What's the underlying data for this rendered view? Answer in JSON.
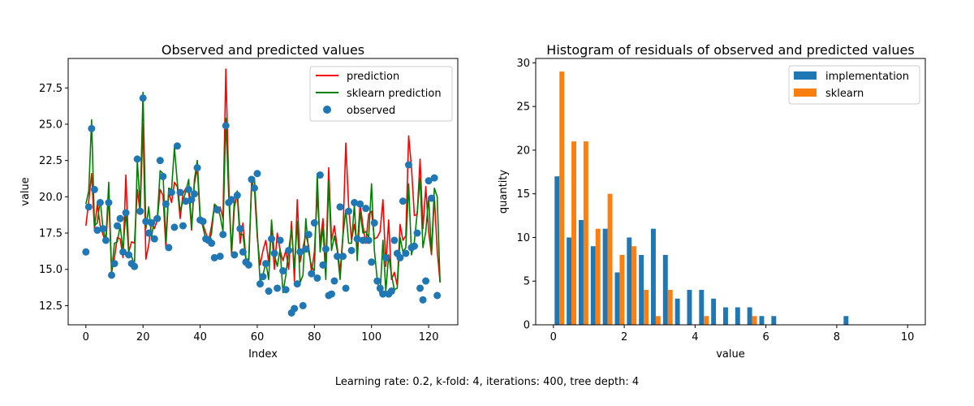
{
  "figure": {
    "caption": "Learning rate: 0.2, k-fold: 4, iterations: 400, tree depth: 4"
  },
  "chart_data": [
    {
      "type": "line",
      "title": "Observed and predicted values",
      "xlabel": "Index",
      "ylabel": "value",
      "xlim": [
        -6.2,
        130.2
      ],
      "ylim": [
        11.18,
        29.53
      ],
      "xticks": [
        0,
        20,
        40,
        60,
        80,
        100,
        120
      ],
      "xtick_labels": [
        "0",
        "20",
        "40",
        "60",
        "80",
        "100",
        "120"
      ],
      "yticks": [
        12.5,
        15.0,
        17.5,
        20.0,
        22.5,
        25.0,
        27.5
      ],
      "ytick_labels": [
        "12.5",
        "15.0",
        "17.5",
        "20.0",
        "22.5",
        "25.0",
        "27.5"
      ],
      "grid": false,
      "legend_position": "top-right",
      "series": [
        {
          "name": "prediction",
          "kind": "line",
          "color": "#ff0000",
          "values": [
            18.0,
            19.7,
            21.6,
            17.8,
            19.5,
            18.0,
            17.4,
            16.8,
            20.1,
            14.8,
            15.8,
            17.2,
            17.1,
            15.8,
            21.5,
            16.2,
            16.9,
            16.8,
            20.5,
            18.9,
            25.0,
            15.7,
            16.7,
            18.3,
            17.8,
            18.4,
            20.5,
            20.1,
            16.5,
            20.3,
            19.6,
            21.0,
            20.7,
            18.5,
            20.2,
            20.6,
            20.4,
            17.7,
            20.9,
            22.0,
            18.5,
            18.1,
            17.5,
            17.0,
            18.0,
            19.4,
            19.0,
            19.3,
            18.5,
            28.8,
            21.0,
            16.0,
            19.3,
            20.2,
            16.8,
            18.2,
            15.8,
            15.2,
            21.0,
            20.6,
            17.2,
            15.3,
            16.3,
            17.0,
            15.5,
            17.8,
            15.0,
            17.5,
            16.3,
            15.6,
            16.3,
            15.0,
            18.3,
            14.2,
            19.8,
            15.5,
            16.5,
            17.4,
            16.6,
            14.8,
            16.2,
            20.2,
            16.8,
            18.5,
            15.3,
            22.0,
            17.0,
            18.0,
            16.5,
            14.8,
            17.4,
            23.7,
            19.3,
            17.0,
            18.1,
            16.5,
            19.5,
            18.0,
            16.8,
            18.8,
            19.0,
            17.1,
            17.2,
            17.6,
            19.8,
            15.2,
            18.4,
            14.3,
            14.8,
            13.9,
            18.1,
            17.0,
            17.3,
            24.2,
            22.0,
            18.7,
            18.8,
            22.6,
            17.8,
            20.7,
            17.6,
            16.0,
            20.0,
            16.3,
            14.1
          ]
        },
        {
          "name": "sklearn prediction",
          "kind": "line",
          "color": "#008000",
          "values": [
            19.5,
            20.4,
            25.3,
            18.0,
            18.2,
            19.8,
            17.8,
            17.0,
            21.0,
            14.8,
            16.8,
            16.9,
            18.0,
            16.3,
            19.0,
            16.1,
            15.9,
            15.3,
            22.5,
            19.3,
            27.2,
            17.8,
            19.3,
            17.2,
            18.6,
            18.5,
            21.8,
            21.6,
            16.9,
            20.6,
            20.5,
            23.4,
            21.0,
            19.0,
            19.7,
            20.4,
            21.2,
            17.8,
            21.2,
            22.5,
            18.7,
            17.9,
            17.0,
            16.8,
            17.5,
            19.5,
            19.3,
            18.7,
            17.6,
            25.4,
            20.1,
            16.2,
            19.9,
            20.4,
            17.4,
            17.4,
            15.7,
            15.7,
            20.6,
            21.3,
            17.6,
            14.1,
            14.6,
            15.5,
            14.3,
            18.4,
            16.0,
            15.2,
            16.4,
            13.4,
            14.6,
            16.3,
            17.8,
            15.1,
            18.3,
            14.1,
            14.6,
            18.5,
            16.2,
            15.2,
            14.9,
            21.6,
            16.2,
            17.9,
            14.3,
            21.1,
            16.3,
            17.3,
            16.3,
            14.3,
            17.3,
            19.1,
            16.8,
            16.8,
            19.5,
            15.6,
            19.0,
            17.5,
            17.6,
            17.2,
            20.9,
            16.3,
            14.3,
            13.3,
            17.0,
            13.5,
            16.0,
            14.6,
            13.6,
            13.7,
            17.2,
            16.2,
            16.5,
            20.9,
            16.0,
            16.9,
            18.9,
            21.3,
            16.5,
            17.6,
            20.0,
            16.1,
            20.6,
            20.0,
            14.1
          ]
        },
        {
          "name": "observed",
          "kind": "scatter",
          "color": "#1f77b4",
          "values": [
            16.2,
            19.3,
            24.7,
            20.5,
            17.7,
            19.6,
            17.8,
            17.0,
            19.6,
            14.6,
            15.4,
            18.0,
            18.5,
            16.2,
            18.9,
            16.0,
            15.4,
            15.2,
            22.6,
            19.0,
            26.8,
            18.3,
            17.5,
            18.2,
            17.1,
            18.5,
            22.5,
            21.4,
            19.5,
            16.5,
            20.3,
            17.9,
            23.5,
            20.3,
            18.0,
            19.7,
            20.5,
            19.8,
            20.2,
            22.0,
            18.4,
            18.3,
            17.1,
            17.0,
            16.8,
            15.8,
            19.1,
            15.9,
            17.4,
            24.9,
            19.6,
            19.8,
            16.0,
            20.1,
            17.8,
            16.2,
            15.5,
            15.3,
            21.2,
            20.6,
            21.6,
            14.0,
            14.5,
            15.4,
            13.5,
            17.1,
            16.1,
            13.7,
            17.0,
            14.9,
            13.6,
            16.3,
            12.0,
            12.3,
            14.0,
            16.2,
            12.5,
            16.4,
            17.4,
            14.7,
            18.2,
            14.4,
            21.5,
            15.3,
            16.4,
            13.2,
            13.3,
            14.2,
            15.9,
            19.3,
            15.9,
            13.7,
            19.0,
            16.3,
            19.6,
            17.1,
            19.5,
            17.0,
            19.2,
            17.0,
            15.5,
            18.2,
            14.2,
            13.7,
            13.3,
            15.8,
            13.3,
            13.5,
            17.0,
            16.1,
            15.8,
            19.7,
            16.1,
            22.2,
            16.5,
            16.6,
            17.5,
            13.7,
            12.9,
            14.2,
            21.1,
            19.9,
            21.3,
            13.2
          ]
        }
      ]
    },
    {
      "type": "bar",
      "title": "Histogram of residuals of observed and predicted values",
      "xlabel": "value",
      "ylabel": "quantity",
      "xlim": [
        -0.5,
        10.5
      ],
      "ylim": [
        0,
        30.5
      ],
      "xticks": [
        0,
        2,
        4,
        6,
        8,
        10
      ],
      "xtick_labels": [
        "0",
        "2",
        "4",
        "6",
        "8",
        "10"
      ],
      "yticks": [
        0,
        5,
        10,
        15,
        20,
        25,
        30
      ],
      "ytick_labels": [
        "0",
        "5",
        "10",
        "15",
        "20",
        "25",
        "30"
      ],
      "grid": false,
      "legend_position": "top-right",
      "bin_edges": [
        0.0,
        0.34,
        0.68,
        1.02,
        1.36,
        1.7,
        2.04,
        2.38,
        2.72,
        3.06,
        3.4,
        3.74,
        4.08,
        4.42,
        4.76,
        5.1,
        5.44,
        5.78,
        6.12,
        6.46,
        6.8,
        7.14,
        7.48,
        7.82,
        8.16,
        8.5,
        8.84,
        9.18,
        9.52,
        9.86,
        10.2
      ],
      "series": [
        {
          "name": "implementation",
          "color": "#1f77b4",
          "values": [
            17,
            10,
            12,
            9,
            11,
            6,
            10,
            8,
            11,
            8,
            3,
            4,
            4,
            3,
            2,
            2,
            2,
            1,
            1,
            0,
            0,
            0,
            0,
            0,
            1,
            0,
            0,
            0,
            0,
            0
          ]
        },
        {
          "name": "sklearn",
          "color": "#ff7f0e",
          "values": [
            29,
            21,
            21,
            11,
            15,
            8,
            9,
            4,
            1,
            4,
            0,
            0,
            1,
            0,
            0,
            0,
            1,
            0,
            0,
            0,
            0,
            0,
            0,
            0,
            0,
            0,
            0,
            0,
            0,
            0
          ]
        }
      ]
    }
  ]
}
